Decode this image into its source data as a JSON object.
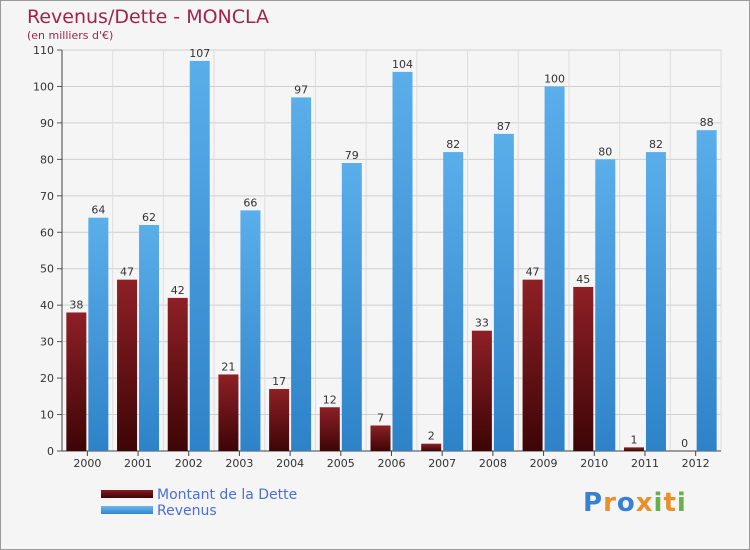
{
  "chart_data": {
    "type": "bar",
    "title": "Revenus/Dette - MONCLA",
    "subtitle": "(en milliers d'€)",
    "categories": [
      "2000",
      "2001",
      "2002",
      "2003",
      "2004",
      "2005",
      "2006",
      "2007",
      "2008",
      "2009",
      "2010",
      "2011",
      "2012"
    ],
    "series": [
      {
        "name": "Montant de la Dette",
        "color": "#7a1a1e",
        "values": [
          38,
          47,
          42,
          21,
          17,
          12,
          7,
          2,
          33,
          47,
          45,
          1,
          0
        ]
      },
      {
        "name": "Revenus",
        "color": "#4aa3e6",
        "values": [
          64,
          62,
          107,
          66,
          97,
          79,
          104,
          82,
          87,
          100,
          80,
          82,
          88
        ]
      }
    ],
    "ylim": [
      0,
      110
    ],
    "yticks": [
      0,
      10,
      20,
      30,
      40,
      50,
      60,
      70,
      80,
      90,
      100,
      110
    ],
    "grid": true,
    "legend_position": "bottom-left"
  },
  "logo": {
    "text": "Proxiti",
    "letter_colors": [
      "#3a7fd0",
      "#e8902a",
      "#3a7fd0",
      "#e8902a",
      "#6ab04c",
      "#e8902a",
      "#6ab04c"
    ]
  }
}
